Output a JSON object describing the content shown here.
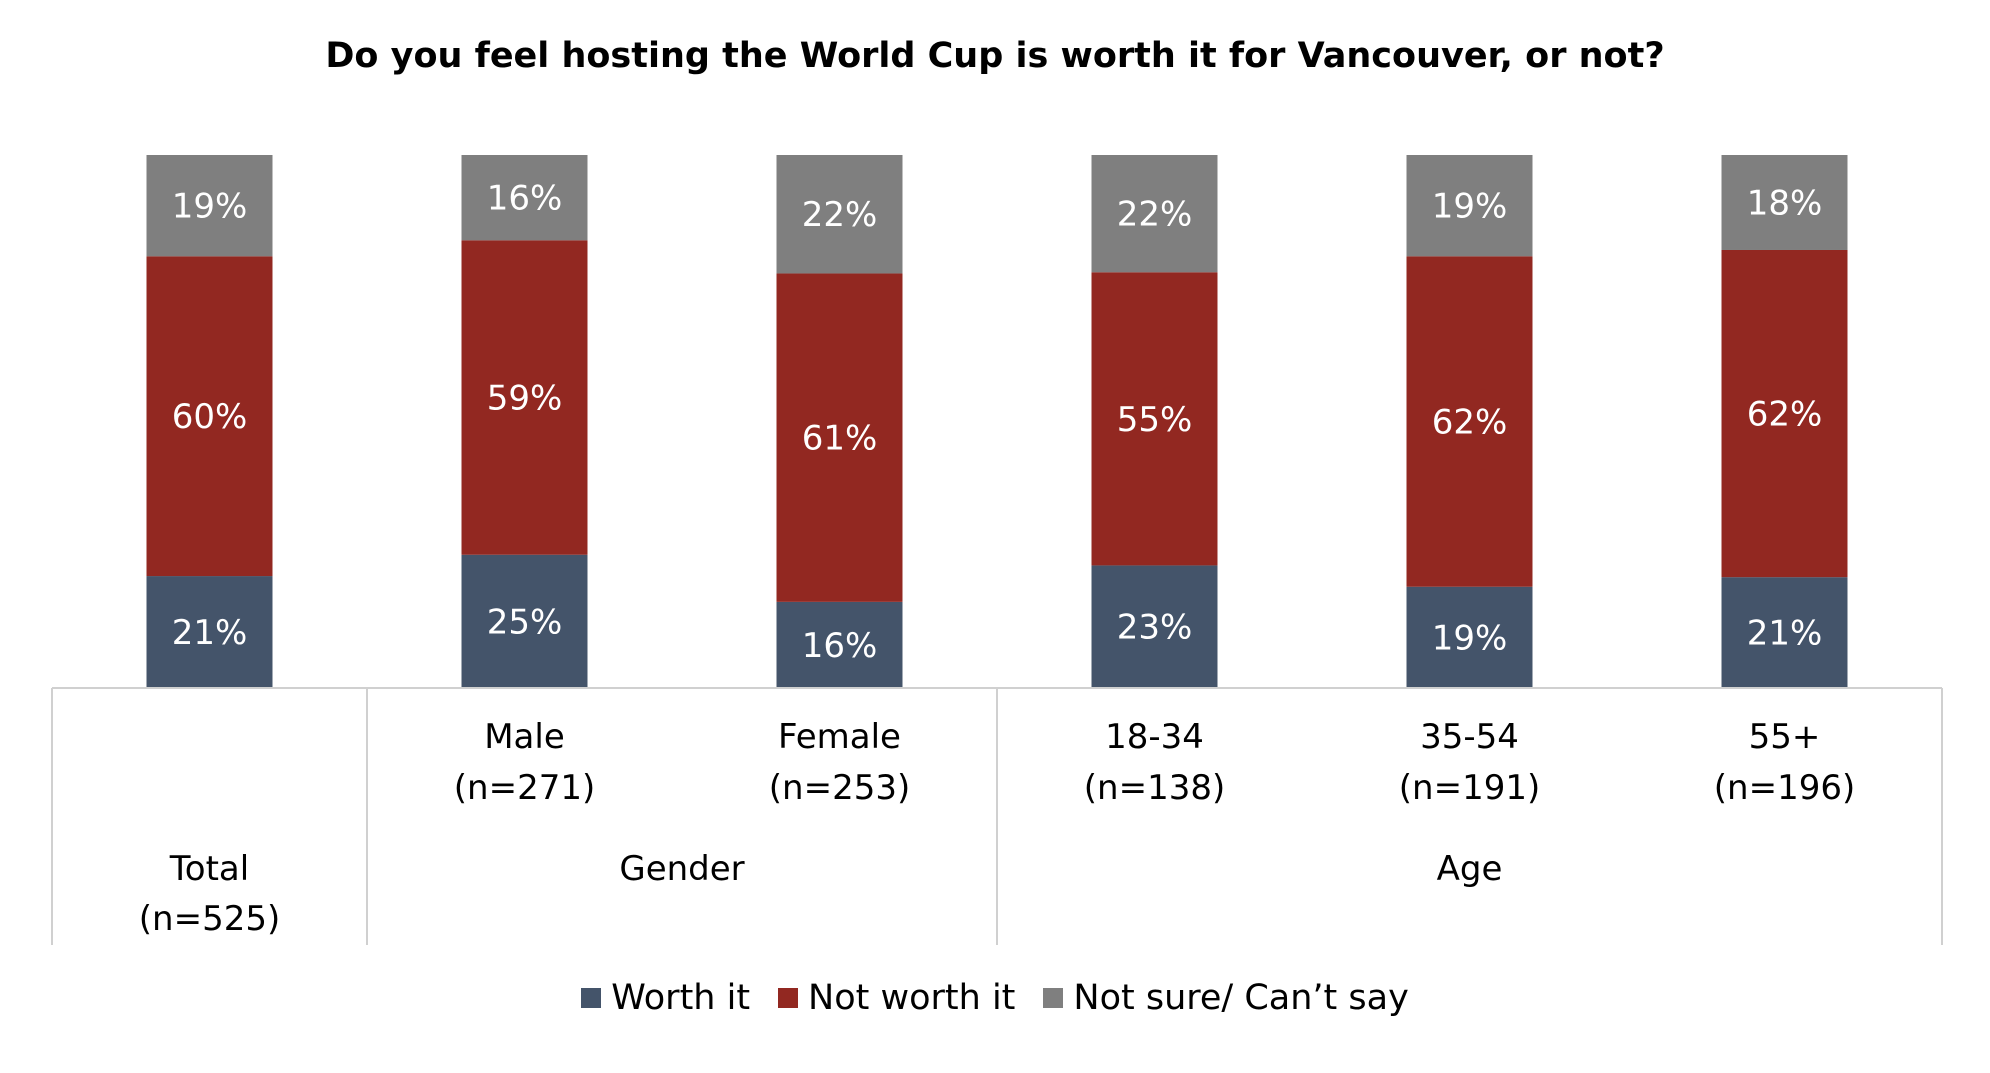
{
  "chart_data": {
    "type": "bar",
    "stacked": true,
    "percent": true,
    "title": "Do you feel hosting the World Cup is worth it for Vancouver, or not?",
    "categories": [
      {
        "label": "Total",
        "n": "(n=525)",
        "group": ""
      },
      {
        "label": "Male",
        "n": "(n=271)",
        "group": "Gender"
      },
      {
        "label": "Female",
        "n": "(n=253)",
        "group": "Gender"
      },
      {
        "label": "18-34",
        "n": "(n=138)",
        "group": "Age"
      },
      {
        "label": "35-54",
        "n": "(n=191)",
        "group": "Age"
      },
      {
        "label": "55+",
        "n": "(n=196)",
        "group": "Age"
      }
    ],
    "groups": [
      {
        "name": "Gender",
        "members": [
          1,
          2
        ]
      },
      {
        "name": "Age",
        "members": [
          3,
          4,
          5
        ]
      }
    ],
    "series": [
      {
        "name": "Worth it",
        "color": "#44546a",
        "values": [
          21,
          25,
          16,
          23,
          19,
          21
        ]
      },
      {
        "name": "Not worth it",
        "color": "#922821",
        "values": [
          60,
          59,
          61,
          55,
          62,
          62
        ]
      },
      {
        "name": "Not sure/ Can’t say",
        "color": "#7f7f7f",
        "values": [
          19,
          16,
          22,
          22,
          19,
          18
        ]
      }
    ],
    "value_format": "{v}%",
    "legend_position": "bottom",
    "grid": false
  }
}
